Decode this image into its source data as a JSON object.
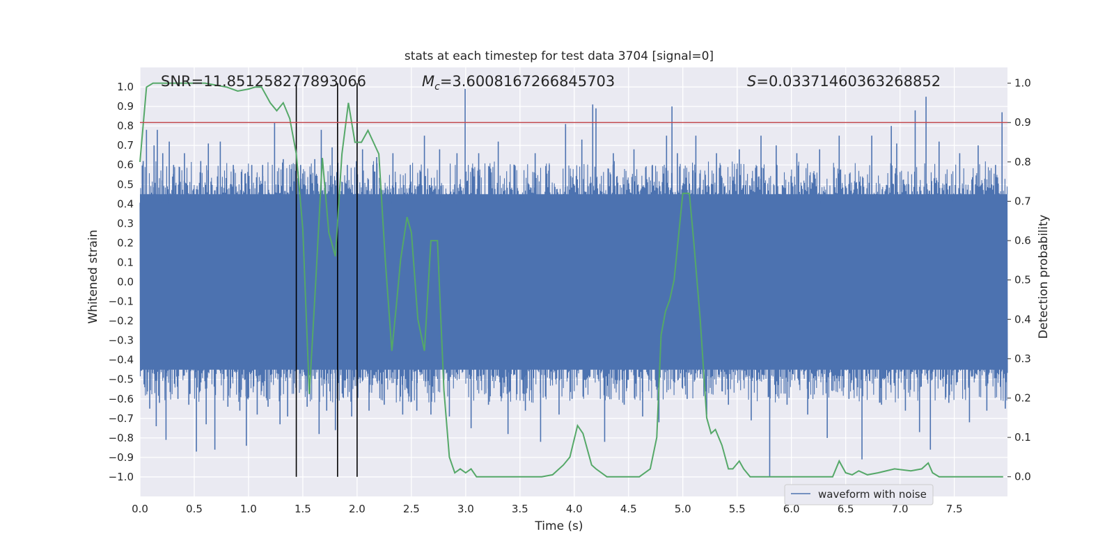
{
  "chart_data": {
    "type": "line",
    "title": "stats at each timestep for test data 3704 [signal=0]",
    "xlabel": "Time (s)",
    "ylabel": "Whitened strain",
    "y2label": "Detection probability",
    "xlim": [
      0,
      7.99
    ],
    "ylim": [
      -1.1,
      1.1
    ],
    "y2lim": [
      -0.05,
      1.04
    ],
    "x_ticks": [
      "0.0",
      "0.5",
      "1.0",
      "1.5",
      "2.0",
      "2.5",
      "3.0",
      "3.5",
      "4.0",
      "4.5",
      "5.0",
      "5.5",
      "6.0",
      "6.5",
      "7.0",
      "7.5"
    ],
    "x_tick_values": [
      0,
      0.5,
      1,
      1.5,
      2,
      2.5,
      3,
      3.5,
      4,
      4.5,
      5,
      5.5,
      6,
      6.5,
      7,
      7.5
    ],
    "y_ticks": [
      "1.0",
      "0.9",
      "0.8",
      "0.7",
      "0.6",
      "0.5",
      "0.4",
      "0.3",
      "0.2",
      "0.1",
      "0.0",
      "−0.1",
      "−0.2",
      "−0.3",
      "−0.4",
      "−0.5",
      "−0.6",
      "−0.7",
      "−0.8",
      "−0.9",
      "−1.0"
    ],
    "y_tick_values": [
      1,
      0.9,
      0.8,
      0.7,
      0.6,
      0.5,
      0.4,
      0.3,
      0.2,
      0.1,
      0,
      -0.1,
      -0.2,
      -0.3,
      -0.4,
      -0.5,
      -0.6,
      -0.7,
      -0.8,
      -0.9,
      -1.0
    ],
    "y2_ticks": [
      "1.0",
      "0.9",
      "0.8",
      "0.7",
      "0.6",
      "0.5",
      "0.4",
      "0.3",
      "0.2",
      "0.1",
      "0.0"
    ],
    "y2_tick_values": [
      1,
      0.9,
      0.8,
      0.7,
      0.6,
      0.5,
      0.4,
      0.3,
      0.2,
      0.1,
      0
    ],
    "annotations": {
      "snr_prefix": "SNR",
      "snr_value": "=11.851258277893066",
      "mc_symbol": "M",
      "mc_sub": "c",
      "mc_value": "=3.6008167266845703",
      "s_symbol": "S",
      "s_value": "=0.03371460363268852"
    },
    "legend": {
      "label": "waveform with noise",
      "placement": "lower-right"
    },
    "threshold": {
      "y2": 0.9,
      "color": "#c44e52"
    },
    "vlines": [
      1.44,
      1.82,
      2.0
    ],
    "colors": {
      "waveform": "#4c72b0",
      "probability": "#55a868",
      "threshold": "#c44e52",
      "vline": "#000000",
      "background": "#eaeaf2",
      "grid": "#ffffff"
    },
    "waveform": {
      "name": "waveform with noise",
      "band_top": 0.45,
      "band_bottom": -0.45,
      "spikes": [
        [
          0.03,
          0.62
        ],
        [
          0.06,
          0.78
        ],
        [
          0.09,
          -0.65
        ],
        [
          0.13,
          0.7
        ],
        [
          0.15,
          -0.74
        ],
        [
          0.16,
          0.78
        ],
        [
          0.18,
          -0.62
        ],
        [
          0.21,
          0.66
        ],
        [
          0.24,
          -0.81
        ],
        [
          0.27,
          0.72
        ],
        [
          0.31,
          0.6
        ],
        [
          0.35,
          -0.6
        ],
        [
          0.41,
          0.66
        ],
        [
          0.45,
          -0.63
        ],
        [
          0.52,
          -0.87
        ],
        [
          0.56,
          0.62
        ],
        [
          0.61,
          -0.73
        ],
        [
          0.63,
          0.71
        ],
        [
          0.69,
          -0.86
        ],
        [
          0.74,
          0.72
        ],
        [
          0.81,
          -0.64
        ],
        [
          0.86,
          0.6
        ],
        [
          0.92,
          -0.66
        ],
        [
          0.98,
          -0.84
        ],
        [
          1.03,
          0.6
        ],
        [
          1.08,
          -0.68
        ],
        [
          1.13,
          0.6
        ],
        [
          1.18,
          -0.64
        ],
        [
          1.24,
          0.82
        ],
        [
          1.29,
          -0.73
        ],
        [
          1.32,
          0.63
        ],
        [
          1.36,
          -0.69
        ],
        [
          1.48,
          0.6
        ],
        [
          1.54,
          -0.64
        ],
        [
          1.61,
          0.63
        ],
        [
          1.65,
          -0.78
        ],
        [
          1.67,
          0.78
        ],
        [
          1.72,
          -0.66
        ],
        [
          1.77,
          0.69
        ],
        [
          1.8,
          -0.76
        ],
        [
          1.91,
          0.6
        ],
        [
          1.95,
          -0.69
        ],
        [
          2.05,
          0.68
        ],
        [
          2.11,
          -0.66
        ],
        [
          2.18,
          0.64
        ],
        [
          2.25,
          -0.63
        ],
        [
          2.33,
          0.66
        ],
        [
          2.42,
          -0.68
        ],
        [
          2.49,
          0.6
        ],
        [
          2.55,
          -0.66
        ],
        [
          2.62,
          0.75
        ],
        [
          2.68,
          -0.68
        ],
        [
          2.76,
          0.68
        ],
        [
          2.85,
          -0.69
        ],
        [
          2.92,
          0.66
        ],
        [
          2.995,
          0.99
        ],
        [
          3.05,
          -0.75
        ],
        [
          3.12,
          0.66
        ],
        [
          3.21,
          -0.63
        ],
        [
          3.3,
          0.72
        ],
        [
          3.39,
          -0.78
        ],
        [
          3.45,
          0.6
        ],
        [
          3.55,
          -0.66
        ],
        [
          3.64,
          0.66
        ],
        [
          3.69,
          -0.82
        ],
        [
          3.77,
          0.6
        ],
        [
          3.86,
          -0.68
        ],
        [
          3.92,
          0.81
        ],
        [
          3.98,
          -0.6
        ],
        [
          4.07,
          0.73
        ],
        [
          4.17,
          0.91
        ],
        [
          4.2,
          0.89
        ],
        [
          4.28,
          -0.82
        ],
        [
          4.36,
          0.66
        ],
        [
          4.46,
          -0.63
        ],
        [
          4.55,
          0.68
        ],
        [
          4.63,
          -0.69
        ],
        [
          4.72,
          0.6
        ],
        [
          4.78,
          -0.72
        ],
        [
          4.85,
          0.75
        ],
        [
          4.9,
          0.9
        ],
        [
          4.95,
          0.66
        ],
        [
          5.04,
          -0.6
        ],
        [
          5.12,
          0.75
        ],
        [
          5.22,
          -0.68
        ],
        [
          5.31,
          0.66
        ],
        [
          5.42,
          -0.63
        ],
        [
          5.52,
          0.68
        ],
        [
          5.63,
          -0.71
        ],
        [
          5.72,
          0.75
        ],
        [
          5.8,
          -1.0
        ],
        [
          5.86,
          0.7
        ],
        [
          5.96,
          -0.63
        ],
        [
          6.05,
          0.66
        ],
        [
          6.15,
          -0.68
        ],
        [
          6.26,
          0.68
        ],
        [
          6.33,
          -0.8
        ],
        [
          6.44,
          0.75
        ],
        [
          6.53,
          -0.6
        ],
        [
          6.65,
          -0.91
        ],
        [
          6.74,
          0.75
        ],
        [
          6.83,
          -0.63
        ],
        [
          6.92,
          0.8
        ],
        [
          6.97,
          0.71
        ],
        [
          7.05,
          -0.66
        ],
        [
          7.14,
          0.88
        ],
        [
          7.18,
          -0.77
        ],
        [
          7.24,
          0.95
        ],
        [
          7.28,
          -0.86
        ],
        [
          7.36,
          0.72
        ],
        [
          7.45,
          -0.62
        ],
        [
          7.55,
          0.66
        ],
        [
          7.64,
          -0.72
        ],
        [
          7.72,
          0.7
        ],
        [
          7.8,
          -0.66
        ],
        [
          7.88,
          0.6
        ],
        [
          7.94,
          0.87
        ],
        [
          7.97,
          -0.65
        ]
      ]
    },
    "probability": {
      "name": "detection probability",
      "x": [
        0.0,
        0.06,
        0.12,
        0.2,
        0.3,
        0.4,
        0.5,
        0.6,
        0.7,
        0.8,
        0.9,
        1.0,
        1.06,
        1.12,
        1.2,
        1.26,
        1.32,
        1.38,
        1.44,
        1.5,
        1.56,
        1.62,
        1.68,
        1.74,
        1.8,
        1.86,
        1.92,
        1.98,
        2.04,
        2.1,
        2.2,
        2.26,
        2.32,
        2.36,
        2.4,
        2.46,
        2.5,
        2.56,
        2.62,
        2.68,
        2.74,
        2.8,
        2.85,
        2.9,
        2.95,
        3.0,
        3.05,
        3.1,
        3.3,
        3.5,
        3.6,
        3.7,
        3.8,
        3.9,
        3.96,
        4.03,
        4.08,
        4.16,
        4.2,
        4.3,
        4.6,
        4.7,
        4.76,
        4.8,
        4.84,
        4.88,
        4.92,
        5.0,
        5.06,
        5.1,
        5.16,
        5.22,
        5.26,
        5.3,
        5.36,
        5.42,
        5.46,
        5.52,
        5.56,
        5.62,
        5.7,
        6.0,
        6.3,
        6.38,
        6.44,
        6.5,
        6.56,
        6.62,
        6.7,
        6.8,
        6.95,
        7.1,
        7.2,
        7.26,
        7.3,
        7.36,
        7.5,
        7.7,
        7.95
      ],
      "y": [
        0.8,
        0.99,
        1.0,
        1.0,
        1.0,
        1.0,
        1.0,
        1.0,
        0.995,
        0.99,
        0.98,
        0.985,
        0.99,
        0.99,
        0.95,
        0.93,
        0.95,
        0.91,
        0.82,
        0.63,
        0.21,
        0.5,
        0.81,
        0.62,
        0.56,
        0.82,
        0.95,
        0.85,
        0.85,
        0.88,
        0.82,
        0.55,
        0.32,
        0.43,
        0.55,
        0.66,
        0.62,
        0.4,
        0.32,
        0.6,
        0.6,
        0.22,
        0.05,
        0.01,
        0.02,
        0.01,
        0.02,
        0.0,
        0.0,
        0.0,
        0.0,
        0.0,
        0.005,
        0.03,
        0.05,
        0.13,
        0.11,
        0.03,
        0.02,
        0.0,
        0.0,
        0.02,
        0.1,
        0.36,
        0.42,
        0.45,
        0.5,
        0.72,
        0.72,
        0.6,
        0.4,
        0.15,
        0.11,
        0.12,
        0.08,
        0.02,
        0.02,
        0.04,
        0.02,
        0.0,
        0.0,
        0.0,
        0.0,
        0.0,
        0.04,
        0.01,
        0.005,
        0.015,
        0.005,
        0.01,
        0.02,
        0.015,
        0.02,
        0.035,
        0.01,
        0.0,
        0.0,
        0.0,
        0.0
      ]
    }
  }
}
